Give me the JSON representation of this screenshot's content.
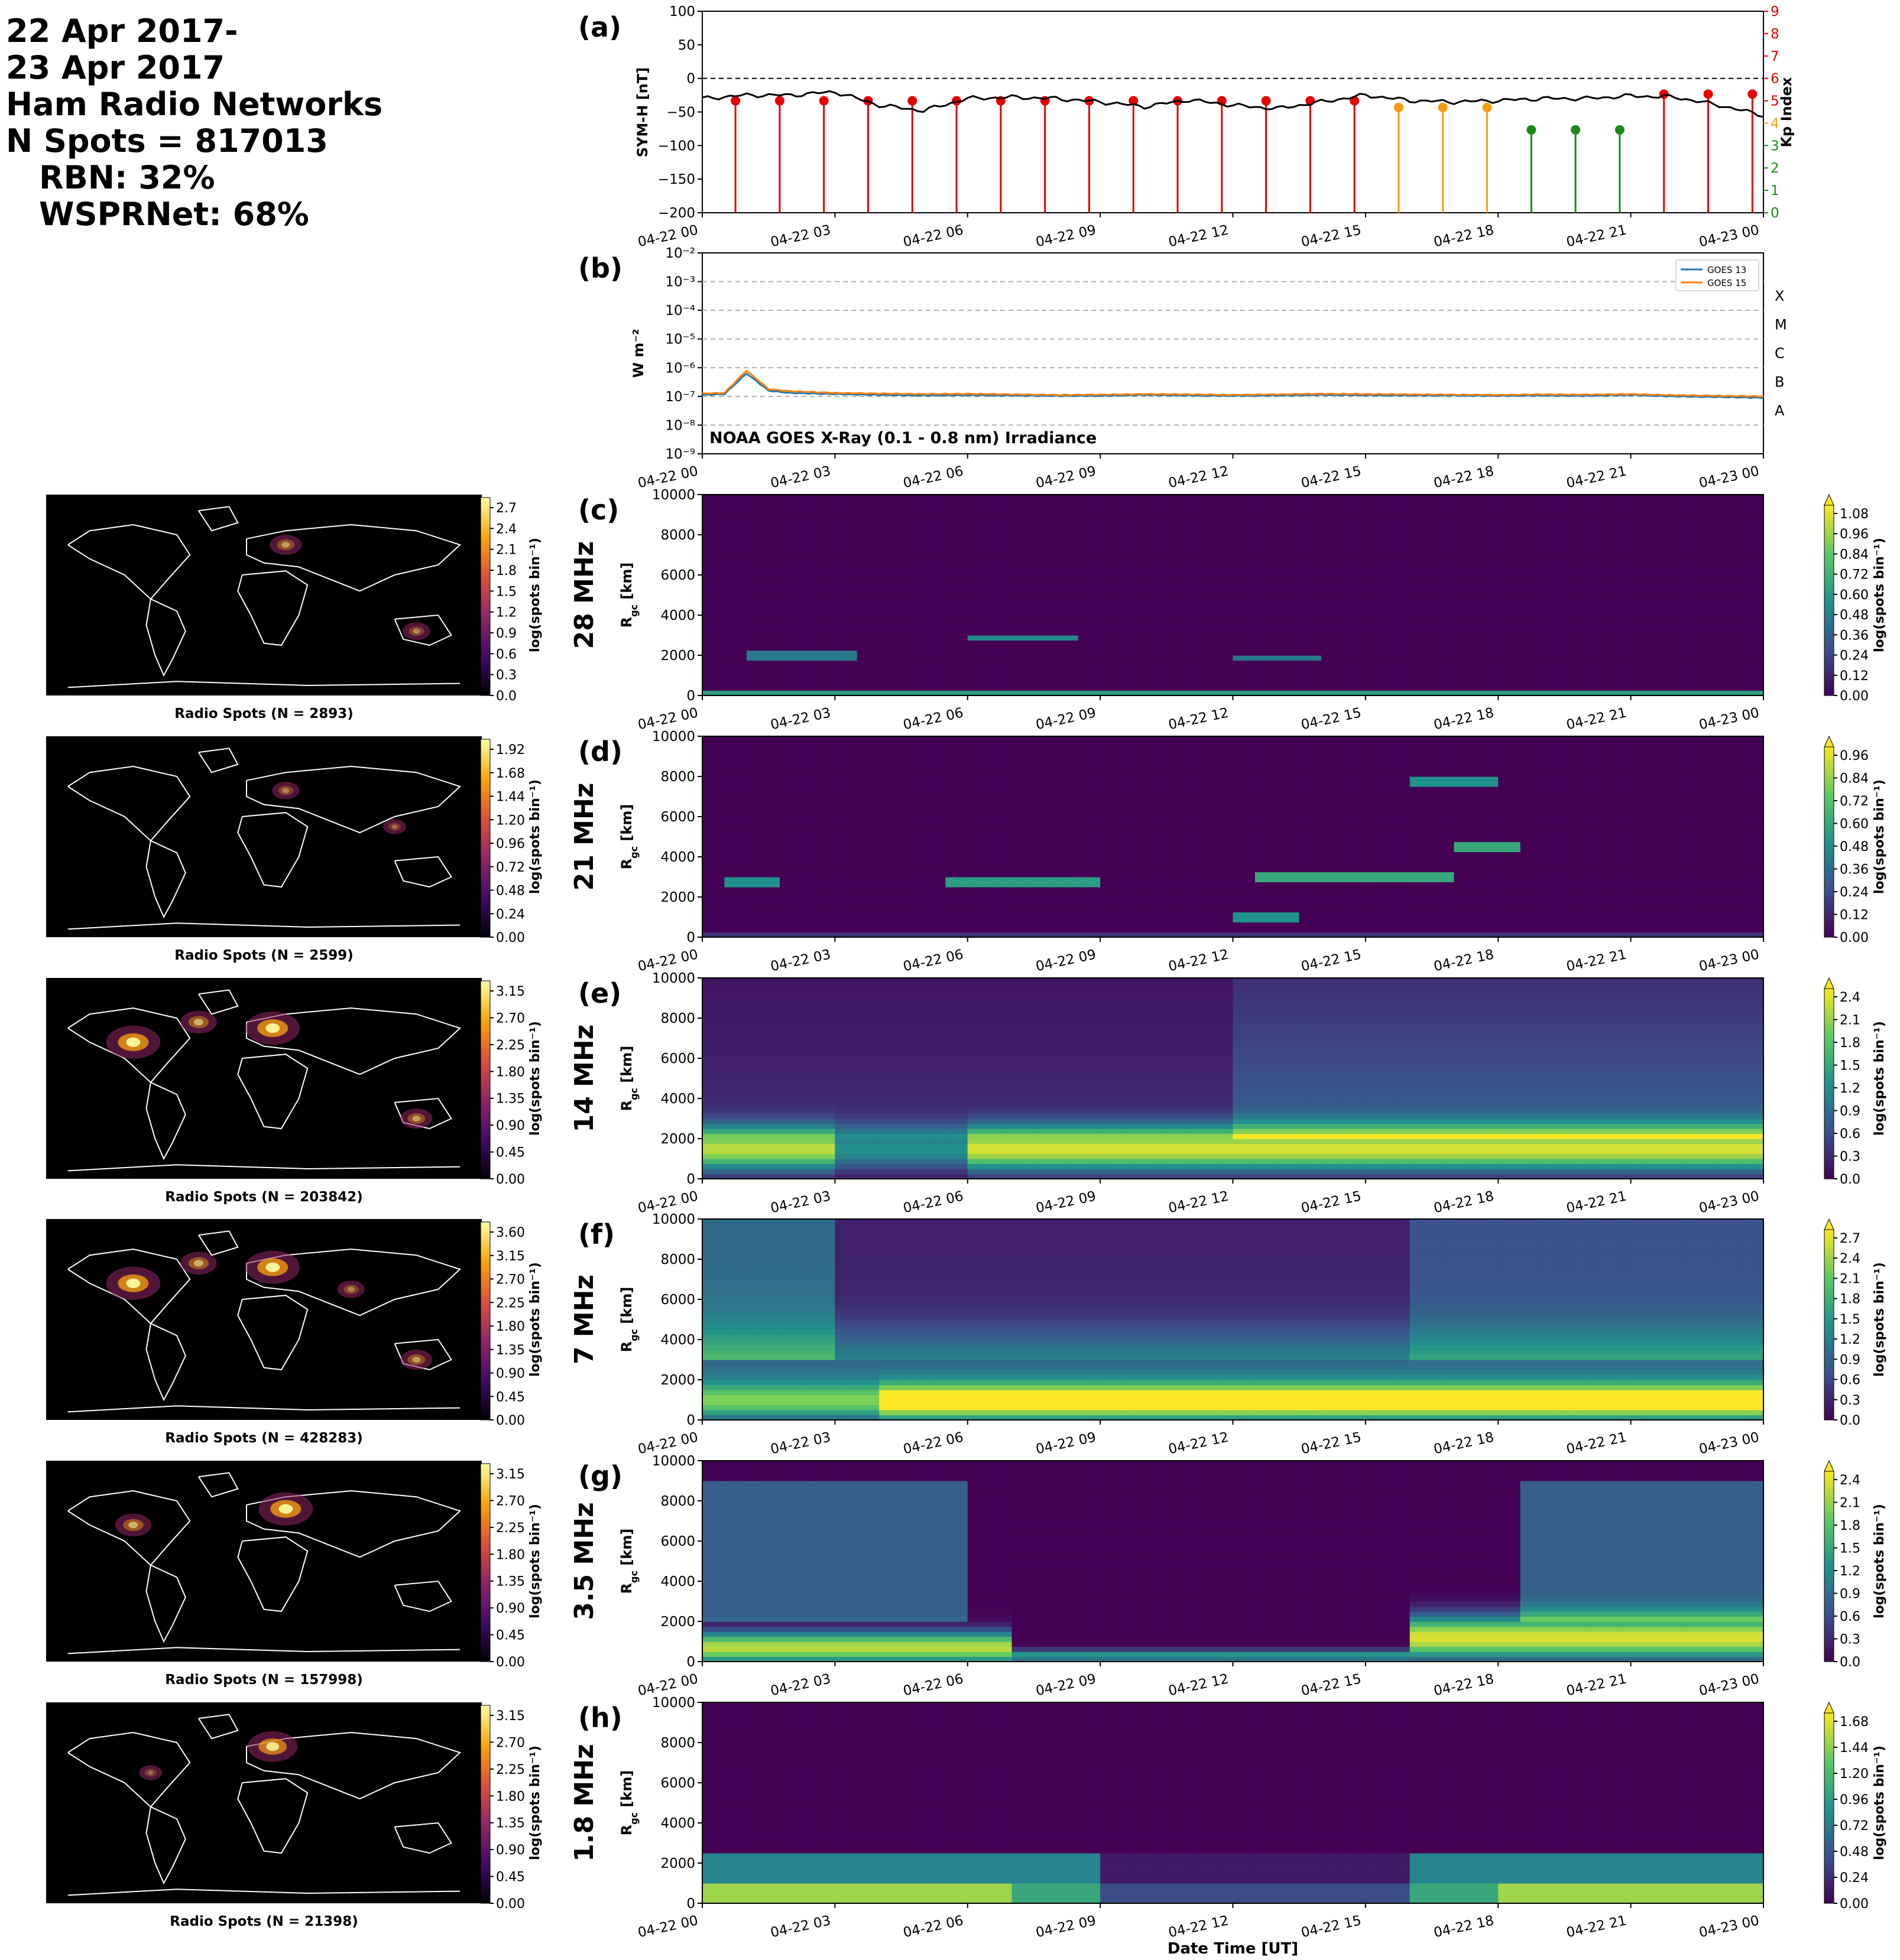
{
  "header": {
    "date_line1": "22 Apr 2017-",
    "date_line2": "23 Apr 2017",
    "networks": "Ham Radio Networks",
    "n_spots": "N Spots = 817013",
    "rbn": "RBN: 32%",
    "wsprnet": "WSPRNet: 68%"
  },
  "time_axis": {
    "ticks": [
      "04-22 00",
      "04-22 03",
      "04-22 06",
      "04-22 09",
      "04-22 12",
      "04-22 15",
      "04-22 18",
      "04-22 21",
      "04-23 00"
    ],
    "xlabel": "Date Time [UT]"
  },
  "colors": {
    "viridis_dark": "#440154",
    "viridis_yellow": "#fde725",
    "kp_red": "#e60000",
    "kp_orange": "#f39c12",
    "kp_green": "#1a8a1a",
    "goes13": "#1f77b4",
    "goes15": "#ff7f0e",
    "map_bg": "#000000"
  },
  "chart_data": [
    {
      "panel": "(a)",
      "type": "line",
      "ylabel": "SYM-H [nT]",
      "ylabel_right": "Kp Index",
      "ylim": [
        -200,
        100
      ],
      "yticks": [
        "100",
        "50",
        "0",
        "−50",
        "−100",
        "−150",
        "−200"
      ],
      "ylim_right": [
        0,
        9
      ],
      "yticks_right": [
        "9",
        "8",
        "7",
        "6",
        "5",
        "4",
        "3",
        "2",
        "1",
        "0"
      ],
      "symh": {
        "x": [
          0,
          1,
          2,
          3,
          4,
          5,
          6,
          7,
          8,
          9,
          10,
          11,
          12,
          13,
          14,
          15,
          16,
          17,
          18,
          19,
          20,
          21,
          22,
          23,
          24
        ],
        "y": [
          -30,
          -25,
          -25,
          -20,
          -40,
          -48,
          -30,
          -28,
          -30,
          -35,
          -42,
          -32,
          -40,
          -45,
          -35,
          -25,
          -33,
          -35,
          -33,
          -30,
          -30,
          -26,
          -28,
          -40,
          -55
        ]
      },
      "kp": {
        "x": [
          1.5,
          4.5,
          7.5,
          10.5,
          13.5,
          16.5,
          19.5,
          22.5
        ],
        "y": [
          5.0,
          5.0,
          5.0,
          5.0,
          5.0,
          4.7,
          3.7,
          5.3
        ]
      }
    },
    {
      "panel": "(b)",
      "type": "line",
      "ylabel": "W m⁻²",
      "annotation": "NOAA GOES X-Ray (0.1 - 0.8 nm) Irradiance",
      "yscale": "log",
      "ylim": [
        "1e-9",
        "1e-2"
      ],
      "yticks": [
        "10⁻²",
        "10⁻³",
        "10⁻⁴",
        "10⁻⁵",
        "10⁻⁶",
        "10⁻⁷",
        "10⁻⁸",
        "10⁻⁹"
      ],
      "flare_classes": [
        "X",
        "M",
        "C",
        "B",
        "A"
      ],
      "series": [
        {
          "name": "GOES 13",
          "x": [
            0,
            0.5,
            1,
            1.5,
            2,
            3,
            4,
            5,
            6,
            7,
            8,
            9,
            10,
            11,
            12,
            13,
            14,
            15,
            16,
            17,
            18,
            19,
            20,
            21,
            22,
            23,
            24
          ],
          "y": [
            -6.95,
            -6.92,
            -6.2,
            -6.8,
            -6.88,
            -6.92,
            -6.95,
            -6.97,
            -6.96,
            -6.97,
            -6.98,
            -6.98,
            -6.95,
            -6.97,
            -6.98,
            -6.97,
            -6.95,
            -6.96,
            -6.97,
            -6.97,
            -6.98,
            -6.97,
            -6.98,
            -6.95,
            -7.0,
            -7.02,
            -7.05
          ]
        },
        {
          "name": "GOES 15",
          "x": [
            0,
            0.5,
            1,
            1.5,
            2,
            3,
            4,
            5,
            6,
            7,
            8,
            9,
            10,
            11,
            12,
            13,
            14,
            15,
            16,
            17,
            18,
            19,
            20,
            21,
            22,
            23,
            24
          ],
          "y": [
            -6.9,
            -6.88,
            -6.1,
            -6.75,
            -6.82,
            -6.88,
            -6.9,
            -6.92,
            -6.91,
            -6.93,
            -6.95,
            -6.94,
            -6.92,
            -6.93,
            -6.95,
            -6.93,
            -6.91,
            -6.92,
            -6.93,
            -6.94,
            -6.95,
            -6.93,
            -6.94,
            -6.92,
            -6.96,
            -6.98,
            -7.0
          ]
        }
      ]
    }
  ],
  "bands": [
    {
      "panel": "(c)",
      "band": "28 MHz",
      "spots_label": "Radio Spots (N = 2893)",
      "map_ticks": [
        "2.7",
        "2.4",
        "2.1",
        "1.8",
        "1.5",
        "1.2",
        "0.9",
        "0.6",
        "0.3",
        "0.0"
      ],
      "rgc_ticks": [
        "1.08",
        "0.96",
        "0.84",
        "0.72",
        "0.60",
        "0.48",
        "0.36",
        "0.24",
        "0.12",
        "0.00"
      ]
    },
    {
      "panel": "(d)",
      "band": "21 MHz",
      "spots_label": "Radio Spots (N = 2599)",
      "map_ticks": [
        "1.92",
        "1.68",
        "1.44",
        "1.20",
        "0.96",
        "0.72",
        "0.48",
        "0.24",
        "0.00"
      ],
      "rgc_ticks": [
        "0.96",
        "0.84",
        "0.72",
        "0.60",
        "0.48",
        "0.36",
        "0.24",
        "0.12",
        "0.00"
      ]
    },
    {
      "panel": "(e)",
      "band": "14 MHz",
      "spots_label": "Radio Spots (N = 203842)",
      "map_ticks": [
        "3.15",
        "2.70",
        "2.25",
        "1.80",
        "1.35",
        "0.90",
        "0.45",
        "0.00"
      ],
      "rgc_ticks": [
        "2.4",
        "2.1",
        "1.8",
        "1.5",
        "1.2",
        "0.9",
        "0.6",
        "0.3",
        "0.0"
      ]
    },
    {
      "panel": "(f)",
      "band": "7 MHz",
      "spots_label": "Radio Spots (N = 428283)",
      "map_ticks": [
        "3.60",
        "3.15",
        "2.70",
        "2.25",
        "1.80",
        "1.35",
        "0.90",
        "0.45",
        "0.00"
      ],
      "rgc_ticks": [
        "2.7",
        "2.4",
        "2.1",
        "1.8",
        "1.5",
        "1.2",
        "0.9",
        "0.6",
        "0.3",
        "0.0"
      ]
    },
    {
      "panel": "(g)",
      "band": "3.5 MHz",
      "spots_label": "Radio Spots (N = 157998)",
      "map_ticks": [
        "3.15",
        "2.70",
        "2.25",
        "1.80",
        "1.35",
        "0.90",
        "0.45",
        "0.00"
      ],
      "rgc_ticks": [
        "2.4",
        "2.1",
        "1.8",
        "1.5",
        "1.2",
        "0.9",
        "0.6",
        "0.3",
        "0.0"
      ]
    },
    {
      "panel": "(h)",
      "band": "1.8 MHz",
      "spots_label": "Radio Spots (N = 21398)",
      "map_ticks": [
        "3.15",
        "2.70",
        "2.25",
        "1.80",
        "1.35",
        "0.90",
        "0.45",
        "0.00"
      ],
      "rgc_ticks": [
        "1.68",
        "1.44",
        "1.20",
        "0.96",
        "0.72",
        "0.48",
        "0.24",
        "0.00"
      ]
    }
  ],
  "labels": {
    "rgc_ylabel": "R_gc [km]",
    "cbar_label": "log(spots bin⁻¹)",
    "rgc_yticks": [
      "10000",
      "8000",
      "6000",
      "4000",
      "2000",
      "0"
    ]
  }
}
